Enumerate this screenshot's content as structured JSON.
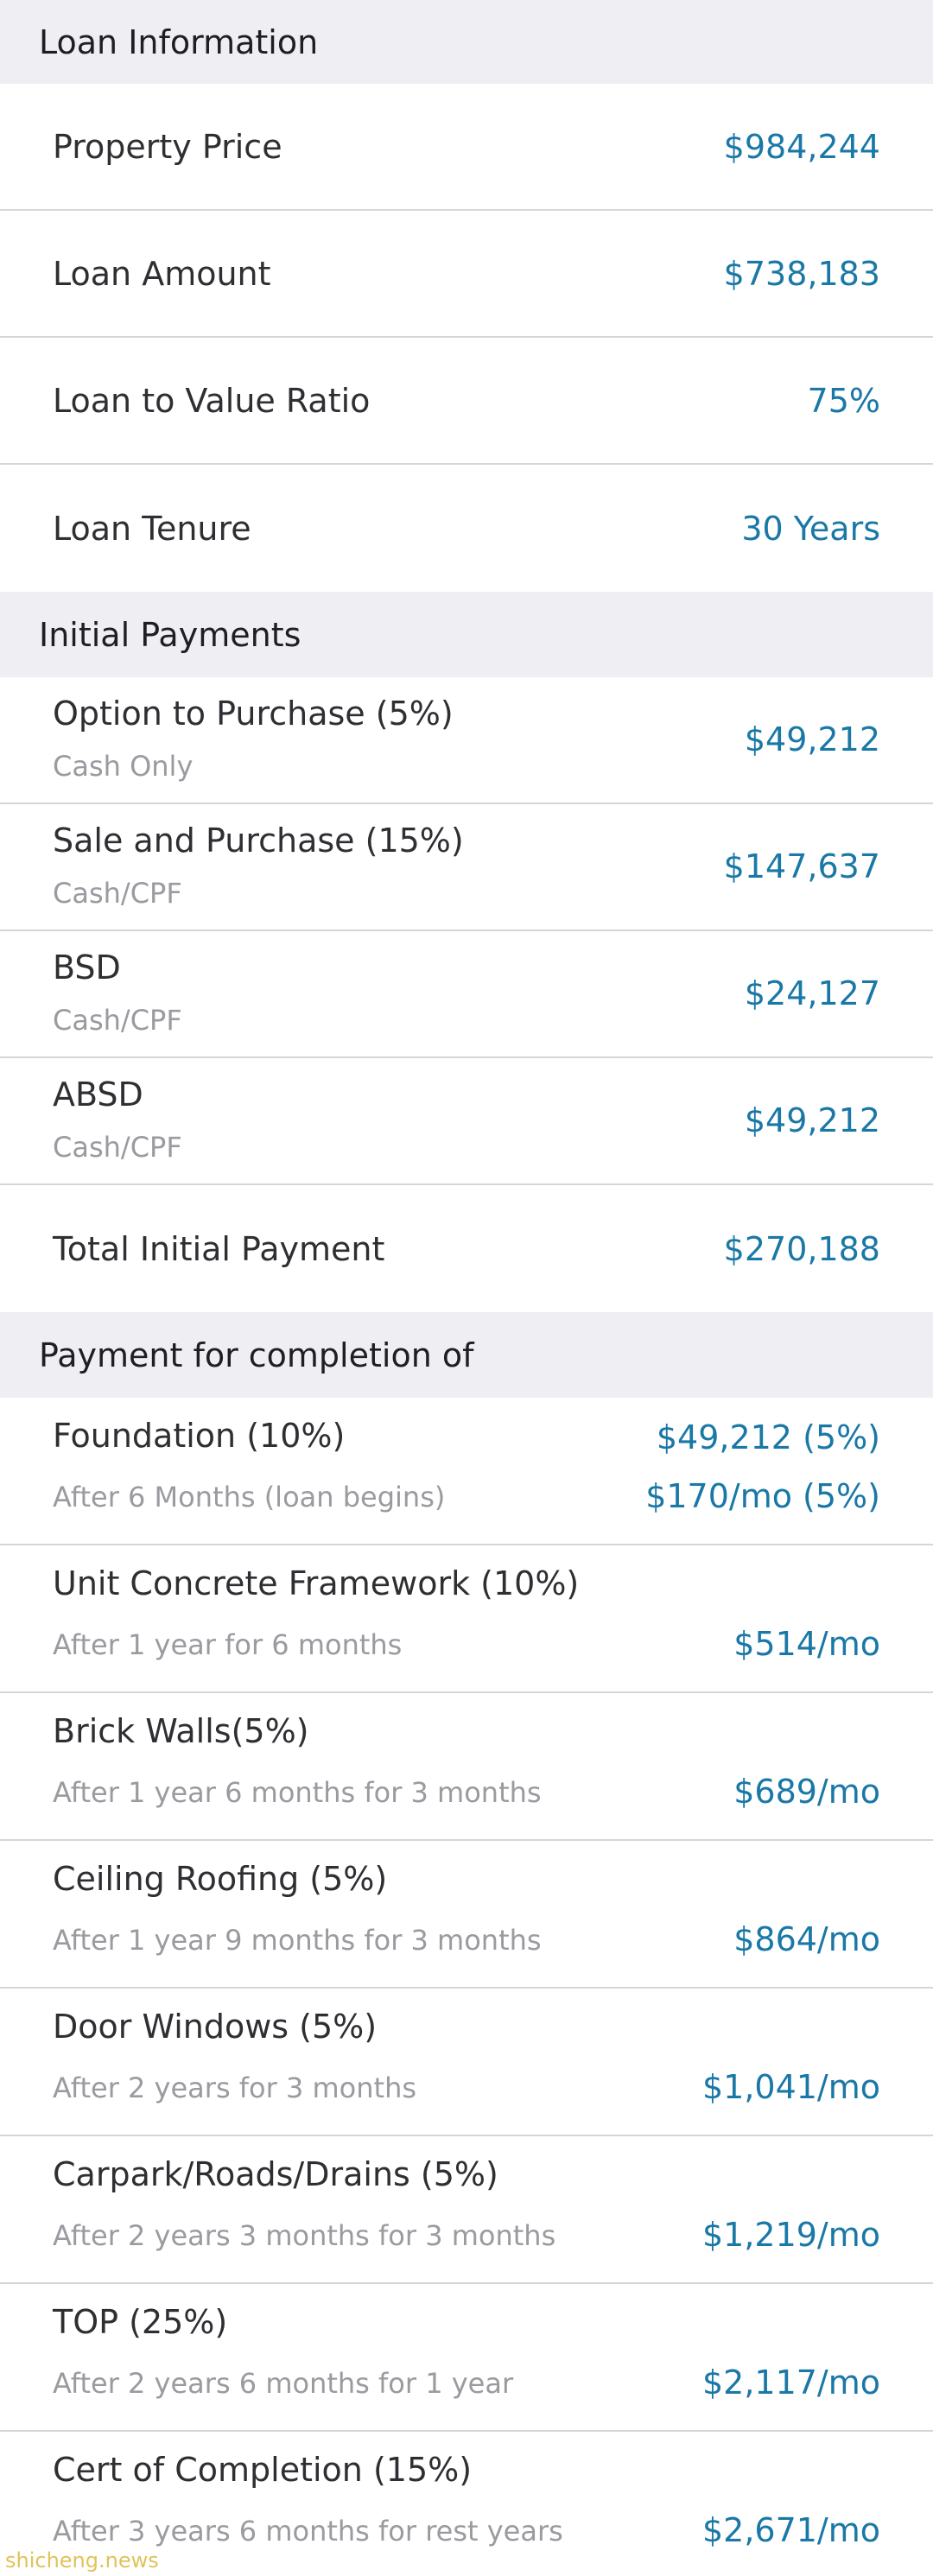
{
  "loan_information": {
    "header": "Loan Information",
    "rows": [
      {
        "label": "Property Price",
        "value": "$984,244"
      },
      {
        "label": "Loan Amount",
        "value": "$738,183"
      },
      {
        "label": "Loan to Value Ratio",
        "value": "75%"
      },
      {
        "label": "Loan Tenure",
        "value": "30 Years"
      }
    ]
  },
  "initial_payments": {
    "header": "Initial Payments",
    "rows": [
      {
        "label": "Option to Purchase (5%)",
        "sublabel": "Cash Only",
        "value": "$49,212"
      },
      {
        "label": "Sale and Purchase (15%)",
        "sublabel": "Cash/CPF",
        "value": "$147,637"
      },
      {
        "label": "BSD",
        "sublabel": "Cash/CPF",
        "value": "$24,127"
      },
      {
        "label": "ABSD",
        "sublabel": "Cash/CPF",
        "value": "$49,212"
      }
    ],
    "total": {
      "label": "Total Initial Payment",
      "value": "$270,188"
    }
  },
  "completion": {
    "header": "Payment for completion of",
    "rows": [
      {
        "label": "Foundation (10%)",
        "sublabel": "After 6 Months (loan begins)",
        "value1": "$49,212 (5%)",
        "value2": "$170/mo (5%)"
      },
      {
        "label": "Unit Concrete Framework (10%)",
        "sublabel": "After 1 year for 6 months",
        "value2": "$514/mo"
      },
      {
        "label": "Brick Walls(5%)",
        "sublabel": "After 1 year 6 months for 3 months",
        "value2": "$689/mo"
      },
      {
        "label": "Ceiling Roofing (5%)",
        "sublabel": "After 1 year 9 months for 3 months",
        "value2": "$864/mo"
      },
      {
        "label": "Door Windows (5%)",
        "sublabel": "After 2 years for 3 months",
        "value2": "$1,041/mo"
      },
      {
        "label": "Carpark/Roads/Drains (5%)",
        "sublabel": "After 2 years 3 months for 3 months",
        "value2": "$1,219/mo"
      },
      {
        "label": "TOP (25%)",
        "sublabel": "After 2 years 6 months for 1 year",
        "value2": "$2,117/mo"
      },
      {
        "label": "Cert of Completion (15%)",
        "sublabel": "After 3 years 6 months for rest years",
        "value2": "$2,671/mo"
      }
    ]
  },
  "watermark": "shicheng.news"
}
